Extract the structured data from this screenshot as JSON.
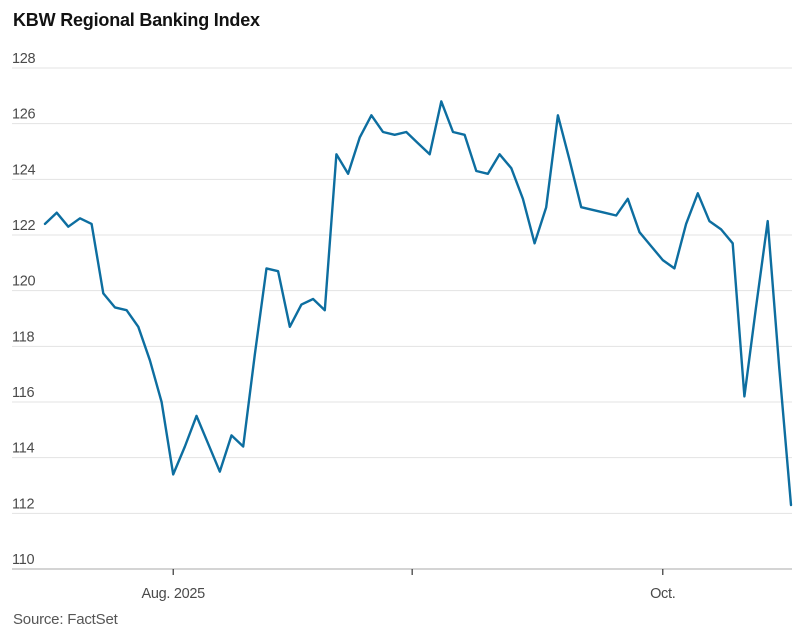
{
  "chart_data": {
    "type": "line",
    "title": "KBW Regional Banking Index",
    "source": "Source: FactSet",
    "line_color": "#0d6ea0",
    "gridline_color": "#e3e3e3",
    "baseline_color": "#a8a8a8",
    "tick_color": "#333333",
    "ylim": [
      110,
      128
    ],
    "y_ticks": [
      110,
      112,
      114,
      116,
      118,
      120,
      122,
      124,
      126,
      128
    ],
    "x_ticks": [
      {
        "label": "Aug. 2025",
        "day": 11
      },
      {
        "label": "",
        "day": 31.5
      },
      {
        "label": "Oct.",
        "day": 53
      }
    ],
    "values": [
      122.4,
      122.8,
      122.3,
      122.6,
      122.4,
      119.9,
      119.4,
      119.3,
      118.7,
      117.5,
      116.0,
      113.4,
      114.4,
      115.5,
      114.5,
      113.5,
      114.8,
      114.4,
      117.7,
      120.8,
      120.7,
      118.7,
      119.5,
      119.7,
      119.3,
      124.9,
      124.2,
      125.5,
      126.3,
      125.7,
      125.6,
      125.7,
      125.3,
      124.9,
      126.8,
      125.7,
      125.6,
      124.3,
      124.2,
      124.9,
      124.4,
      123.3,
      121.7,
      123.0,
      126.3,
      124.7,
      123.0,
      122.9,
      122.8,
      122.7,
      123.3,
      122.1,
      121.6,
      121.1,
      120.8,
      122.4,
      123.5,
      122.5,
      122.2,
      121.7,
      116.2,
      119.4,
      122.5,
      117.2,
      112.3
    ]
  }
}
